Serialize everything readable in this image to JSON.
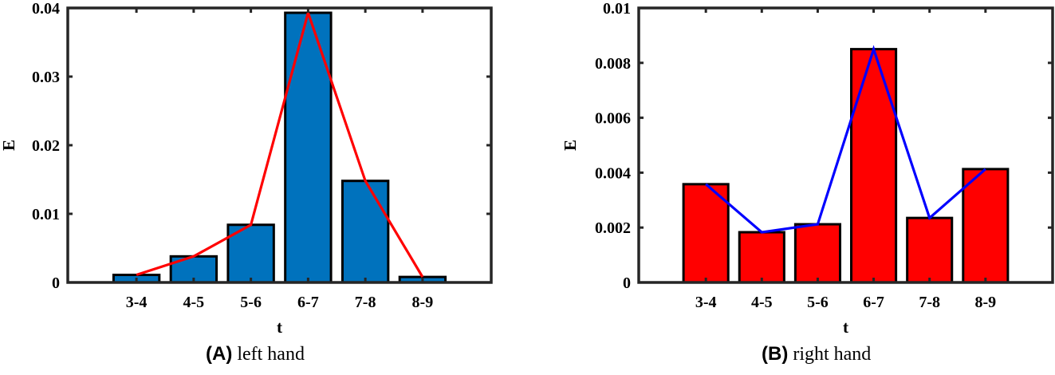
{
  "chart_data": [
    {
      "type": "bar",
      "panel": "A",
      "title": "",
      "caption_tag": "(A)",
      "caption_text": "left hand",
      "xlabel": "t",
      "ylabel": "E",
      "categories": [
        "3-4",
        "4-5",
        "5-6",
        "6-7",
        "7-8",
        "8-9"
      ],
      "values": [
        0.0011,
        0.0038,
        0.0084,
        0.0393,
        0.0148,
        0.0008
      ],
      "line_overlay": {
        "values": [
          0.0011,
          0.0038,
          0.0084,
          0.0393,
          0.0148,
          0.0008
        ],
        "color": "#ff0000"
      },
      "bar_color": "#0072bd",
      "ylim": [
        0,
        0.04
      ],
      "yticks": [
        "0",
        "0.01",
        "0.02",
        "0.03",
        "0.04"
      ],
      "grid": false,
      "legend": null
    },
    {
      "type": "bar",
      "panel": "B",
      "title": "",
      "caption_tag": "(B)",
      "caption_text": "right hand",
      "xlabel": "t",
      "ylabel": "E",
      "categories": [
        "3-4",
        "4-5",
        "5-6",
        "6-7",
        "7-8",
        "8-9"
      ],
      "values": [
        0.00358,
        0.00183,
        0.00212,
        0.0085,
        0.00235,
        0.00413
      ],
      "line_overlay": {
        "values": [
          0.00358,
          0.00183,
          0.00212,
          0.0085,
          0.00235,
          0.00413
        ],
        "color": "#0000ff"
      },
      "bar_color": "#ff0000",
      "ylim": [
        0,
        0.01
      ],
      "yticks": [
        "0",
        "0.002",
        "0.004",
        "0.006",
        "0.008",
        "0.01"
      ],
      "grid": false,
      "legend": null
    }
  ]
}
